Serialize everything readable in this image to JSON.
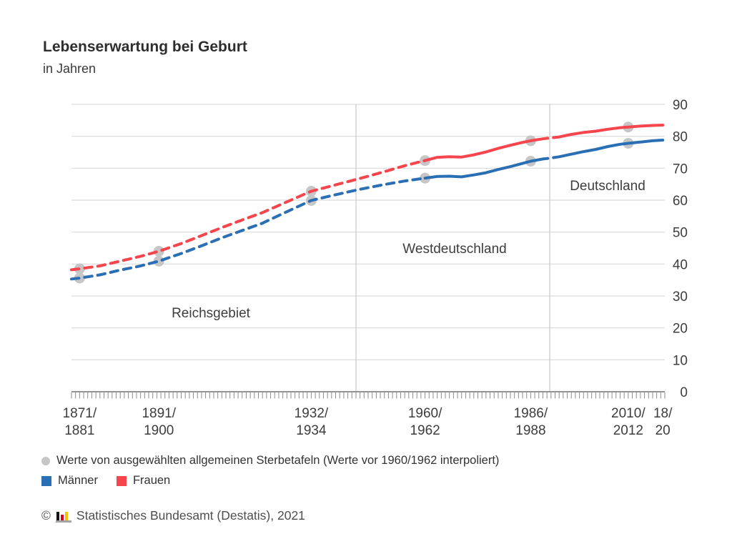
{
  "header": {
    "title": "Lebenserwartung bei Geburt",
    "subtitle": "in Jahren"
  },
  "chart_data": {
    "type": "line",
    "title": "Lebenserwartung bei Geburt",
    "xlabel": "",
    "ylabel": "in Jahren",
    "ylim": [
      0,
      90
    ],
    "y_ticks": [
      0,
      10,
      20,
      30,
      40,
      50,
      60,
      70,
      80,
      90
    ],
    "grid": "horizontal",
    "x_axis": {
      "start_year": 1874,
      "end_year": 2020,
      "tick_every_years": 1,
      "labels": [
        {
          "year": 1876,
          "line1": "1871/",
          "line2": "1881"
        },
        {
          "year": 1895.5,
          "line1": "1891/",
          "line2": "1900"
        },
        {
          "year": 1933,
          "line1": "1932/",
          "line2": "1934"
        },
        {
          "year": 1961,
          "line1": "1960/",
          "line2": "1962"
        },
        {
          "year": 1987,
          "line1": "1986/",
          "line2": "1988"
        },
        {
          "year": 2011,
          "line1": "2010/",
          "line2": "2012"
        },
        {
          "year": 2019.5,
          "line1": "18/",
          "line2": "20"
        }
      ]
    },
    "regions": [
      {
        "label": "Reichsgebiet"
      },
      {
        "label": "Westdeutschland"
      },
      {
        "label": "Deutschland"
      }
    ],
    "dashed_until_year": 1961,
    "dashed_meaning": "Werte vor 1960/1962 interpoliert",
    "series": [
      {
        "name": "Männer",
        "color": "#2a6fb3",
        "points": [
          [
            1874,
            35.3
          ],
          [
            1876,
            35.6
          ],
          [
            1881,
            36.6
          ],
          [
            1886,
            38.1
          ],
          [
            1891,
            39.4
          ],
          [
            1895.5,
            40.9
          ],
          [
            1901,
            43.3
          ],
          [
            1906,
            45.7
          ],
          [
            1911,
            48.2
          ],
          [
            1916,
            50.5
          ],
          [
            1921,
            52.8
          ],
          [
            1926,
            55.8
          ],
          [
            1933,
            59.9
          ],
          [
            1939,
            61.7
          ],
          [
            1945,
            63.4
          ],
          [
            1951,
            64.9
          ],
          [
            1956,
            66.0
          ],
          [
            1961,
            66.9
          ],
          [
            1964,
            67.4
          ],
          [
            1967,
            67.5
          ],
          [
            1970,
            67.3
          ],
          [
            1973,
            67.9
          ],
          [
            1976,
            68.6
          ],
          [
            1979,
            69.6
          ],
          [
            1982,
            70.5
          ],
          [
            1985,
            71.5
          ],
          [
            1987,
            72.2
          ],
          [
            1990,
            72.9
          ],
          [
            1992,
            73.2
          ],
          [
            1994,
            73.6
          ],
          [
            1997,
            74.4
          ],
          [
            2000,
            75.2
          ],
          [
            2003,
            75.9
          ],
          [
            2006,
            76.8
          ],
          [
            2009,
            77.5
          ],
          [
            2011,
            77.8
          ],
          [
            2014,
            78.2
          ],
          [
            2017,
            78.6
          ],
          [
            2019.5,
            78.8
          ]
        ]
      },
      {
        "name": "Frauen",
        "color": "#f6454c",
        "points": [
          [
            1874,
            38.2
          ],
          [
            1876,
            38.5
          ],
          [
            1881,
            39.4
          ],
          [
            1886,
            40.9
          ],
          [
            1891,
            42.4
          ],
          [
            1895.5,
            44.0
          ],
          [
            1901,
            46.4
          ],
          [
            1906,
            48.9
          ],
          [
            1911,
            51.4
          ],
          [
            1916,
            53.8
          ],
          [
            1921,
            56.1
          ],
          [
            1926,
            58.9
          ],
          [
            1933,
            62.8
          ],
          [
            1939,
            64.8
          ],
          [
            1945,
            66.8
          ],
          [
            1951,
            68.9
          ],
          [
            1956,
            70.8
          ],
          [
            1961,
            72.4
          ],
          [
            1964,
            73.4
          ],
          [
            1967,
            73.6
          ],
          [
            1970,
            73.5
          ],
          [
            1973,
            74.2
          ],
          [
            1976,
            75.1
          ],
          [
            1979,
            76.2
          ],
          [
            1982,
            77.2
          ],
          [
            1985,
            78.1
          ],
          [
            1987,
            78.6
          ],
          [
            1990,
            79.2
          ],
          [
            1992,
            79.5
          ],
          [
            1994,
            79.8
          ],
          [
            1997,
            80.6
          ],
          [
            2000,
            81.2
          ],
          [
            2003,
            81.6
          ],
          [
            2006,
            82.2
          ],
          [
            2009,
            82.7
          ],
          [
            2011,
            82.9
          ],
          [
            2014,
            83.2
          ],
          [
            2017,
            83.4
          ],
          [
            2019.5,
            83.5
          ]
        ]
      }
    ],
    "markers": {
      "color": "#c6c6c6",
      "series": [
        {
          "name": "Männer",
          "points": [
            [
              1876,
              35.6
            ],
            [
              1895.5,
              40.9
            ],
            [
              1933,
              59.9
            ],
            [
              1961,
              66.9
            ],
            [
              1987,
              72.2
            ],
            [
              2011,
              77.8
            ]
          ]
        },
        {
          "name": "Frauen",
          "points": [
            [
              1876,
              38.5
            ],
            [
              1895.5,
              44.0
            ],
            [
              1933,
              62.8
            ],
            [
              1961,
              72.4
            ],
            [
              1987,
              78.6
            ],
            [
              2011,
              82.9
            ]
          ]
        }
      ]
    }
  },
  "legend": {
    "marker_note": "Werte von ausgewählten allgemeinen Sterbetafeln (Werte vor 1960/1962 interpoliert)",
    "series": [
      {
        "label": "Männer",
        "color": "#2a6fb3"
      },
      {
        "label": "Frauen",
        "color": "#f6454c"
      }
    ]
  },
  "footer": {
    "copyright": "©",
    "source": "Statistisches Bundesamt (Destatis), 2021"
  }
}
